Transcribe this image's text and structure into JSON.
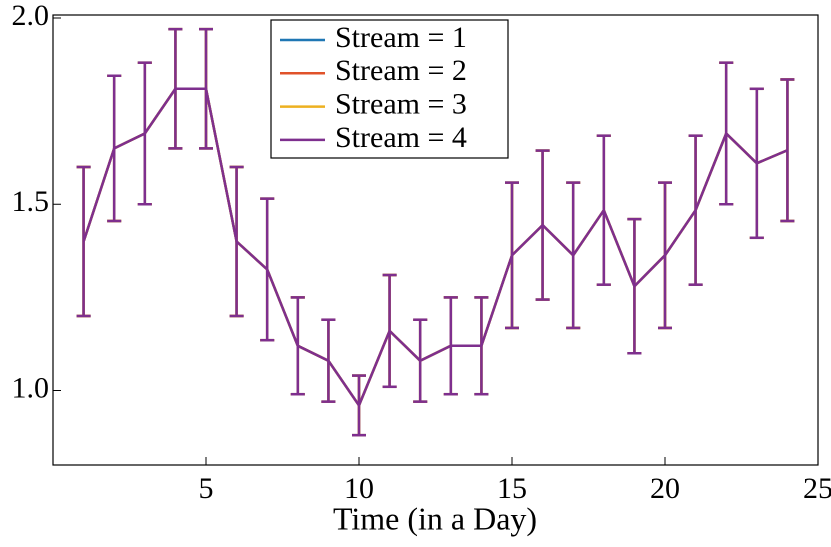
{
  "chart_data": {
    "type": "line",
    "xlabel": "Time (in a Day)",
    "x": [
      1,
      2,
      3,
      4,
      5,
      6,
      7,
      8,
      9,
      10,
      11,
      12,
      13,
      14,
      15,
      16,
      17,
      18,
      19,
      20,
      21,
      22,
      23,
      24
    ],
    "series": [
      {
        "name": "Stream = 1",
        "color": "#1f77b4",
        "values": [
          1.4,
          1.65,
          1.69,
          1.81,
          1.81,
          1.4,
          1.325,
          1.12,
          1.08,
          0.96,
          1.16,
          1.08,
          1.12,
          1.12,
          1.363,
          1.444,
          1.363,
          1.484,
          1.28,
          1.363,
          1.484,
          1.69,
          1.61,
          1.645
        ],
        "errors": [
          0.2,
          0.195,
          0.19,
          0.16,
          0.16,
          0.2,
          0.19,
          0.13,
          0.11,
          0.08,
          0.15,
          0.11,
          0.13,
          0.13,
          0.195,
          0.2,
          0.195,
          0.2,
          0.18,
          0.195,
          0.2,
          0.19,
          0.2,
          0.19
        ]
      },
      {
        "name": "Stream = 2",
        "color": "#e0522a",
        "values": [
          1.4,
          1.65,
          1.69,
          1.81,
          1.81,
          1.4,
          1.325,
          1.12,
          1.08,
          0.96,
          1.16,
          1.08,
          1.12,
          1.12,
          1.363,
          1.444,
          1.363,
          1.484,
          1.28,
          1.363,
          1.484,
          1.69,
          1.61,
          1.645
        ],
        "errors": [
          0.2,
          0.195,
          0.19,
          0.16,
          0.16,
          0.2,
          0.19,
          0.13,
          0.11,
          0.08,
          0.15,
          0.11,
          0.13,
          0.13,
          0.195,
          0.2,
          0.195,
          0.2,
          0.18,
          0.195,
          0.2,
          0.19,
          0.2,
          0.19
        ]
      },
      {
        "name": "Stream = 3",
        "color": "#edb120",
        "values": [
          1.4,
          1.65,
          1.69,
          1.81,
          1.81,
          1.4,
          1.325,
          1.12,
          1.08,
          0.96,
          1.16,
          1.08,
          1.12,
          1.12,
          1.363,
          1.444,
          1.363,
          1.484,
          1.28,
          1.363,
          1.484,
          1.69,
          1.61,
          1.645
        ],
        "errors": [
          0.2,
          0.195,
          0.19,
          0.16,
          0.16,
          0.2,
          0.19,
          0.13,
          0.11,
          0.08,
          0.15,
          0.11,
          0.13,
          0.13,
          0.195,
          0.2,
          0.195,
          0.2,
          0.18,
          0.195,
          0.2,
          0.19,
          0.2,
          0.19
        ]
      },
      {
        "name": "Stream = 4",
        "color": "#7e2f8e",
        "values": [
          1.4,
          1.65,
          1.69,
          1.81,
          1.81,
          1.4,
          1.325,
          1.12,
          1.08,
          0.96,
          1.16,
          1.08,
          1.12,
          1.12,
          1.363,
          1.444,
          1.363,
          1.484,
          1.28,
          1.363,
          1.484,
          1.69,
          1.61,
          1.645
        ],
        "errors": [
          0.2,
          0.195,
          0.19,
          0.16,
          0.16,
          0.2,
          0.19,
          0.13,
          0.11,
          0.08,
          0.15,
          0.11,
          0.13,
          0.13,
          0.195,
          0.2,
          0.195,
          0.2,
          0.18,
          0.195,
          0.2,
          0.19,
          0.2,
          0.19
        ]
      }
    ],
    "xlim": [
      0,
      25
    ],
    "xticks": [
      5,
      10,
      15,
      20,
      25
    ],
    "ylim": [
      0.8,
      2.0
    ],
    "yticks": [
      {
        "value": 1.0,
        "label": "1.0"
      },
      1.5,
      {
        "value": 2.0,
        "label": "2.0"
      }
    ],
    "legend": "upper center"
  }
}
